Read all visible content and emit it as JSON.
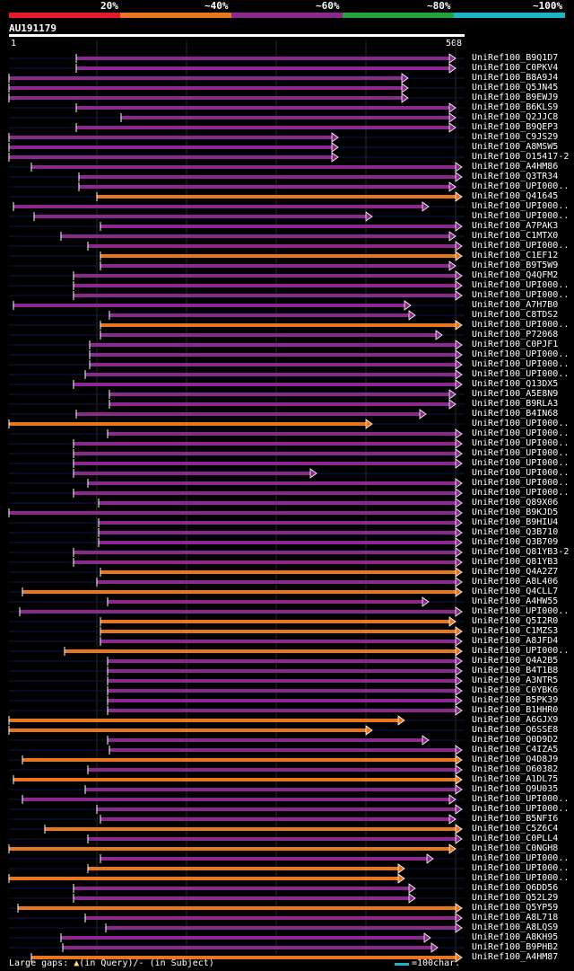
{
  "legend": {
    "labels": [
      "20%",
      "~40%",
      "~60%",
      "~80%",
      "~100%"
    ],
    "colors": [
      "#e8192c",
      "#e8761e",
      "#8b2a8e",
      "#23a33a",
      "#1fb3c8"
    ]
  },
  "query": {
    "id": "AU191179",
    "start_label": "1",
    "end_label": "508"
  },
  "footer": {
    "gaps_prefix": "Large gaps: ",
    "gap_query_symbol": "▲",
    "gaps_mid": "(in Query)/",
    "gap_subject_symbol": "-",
    "gaps_suffix": " (in Subject)",
    "scale_text": "=100char."
  },
  "chart_data": {
    "type": "alignment",
    "query_length": 508,
    "hits": [
      {
        "id": "UniRef100_B9Q1D7",
        "s": 75,
        "e": 498,
        "c": "p"
      },
      {
        "id": "UniRef100_C0PKV4",
        "s": 75,
        "e": 498,
        "c": "p"
      },
      {
        "id": "UniRef100_B8A9J4",
        "s": 0,
        "e": 445,
        "c": "p"
      },
      {
        "id": "UniRef100_Q5JN45",
        "s": 0,
        "e": 445,
        "c": "p"
      },
      {
        "id": "UniRef100_B9EWJ9",
        "s": 0,
        "e": 445,
        "c": "p"
      },
      {
        "id": "UniRef100_B6KLS9",
        "s": 75,
        "e": 498,
        "c": "p"
      },
      {
        "id": "UniRef100_Q2JJC8",
        "s": 125,
        "e": 498,
        "c": "p"
      },
      {
        "id": "UniRef100_B9QEP3",
        "s": 75,
        "e": 498,
        "c": "p"
      },
      {
        "id": "UniRef100_C9JS29",
        "s": 0,
        "e": 367,
        "c": "p"
      },
      {
        "id": "UniRef100_A8MSW5",
        "s": 0,
        "e": 367,
        "c": "p"
      },
      {
        "id": "UniRef100_O15417-2",
        "s": 0,
        "e": 367,
        "c": "p"
      },
      {
        "id": "UniRef100_A4HM86",
        "s": 25,
        "e": 505,
        "c": "p"
      },
      {
        "id": "UniRef100_Q3TR34",
        "s": 78,
        "e": 505,
        "c": "p"
      },
      {
        "id": "UniRef100_UPI000..",
        "s": 78,
        "e": 498,
        "c": "p"
      },
      {
        "id": "UniRef100_Q41645",
        "s": 98,
        "e": 505,
        "c": "o"
      },
      {
        "id": "UniRef100_UPI000..",
        "s": 5,
        "e": 468,
        "c": "p"
      },
      {
        "id": "UniRef100_UPI000..",
        "s": 28,
        "e": 405,
        "c": "p"
      },
      {
        "id": "UniRef100_A7PAK3",
        "s": 102,
        "e": 505,
        "c": "p"
      },
      {
        "id": "UniRef100_C1MTX0",
        "s": 58,
        "e": 498,
        "c": "p"
      },
      {
        "id": "UniRef100_UPI000..",
        "s": 88,
        "e": 505,
        "c": "p"
      },
      {
        "id": "UniRef100_C1EF12",
        "s": 102,
        "e": 505,
        "c": "o"
      },
      {
        "id": "UniRef100_B9T5W9",
        "s": 102,
        "e": 498,
        "c": "p"
      },
      {
        "id": "UniRef100_Q4QFM2",
        "s": 72,
        "e": 505,
        "c": "p"
      },
      {
        "id": "UniRef100_UPI000..",
        "s": 72,
        "e": 505,
        "c": "p"
      },
      {
        "id": "UniRef100_UPI000..",
        "s": 72,
        "e": 505,
        "c": "p"
      },
      {
        "id": "UniRef100_A7H7B0",
        "s": 5,
        "e": 448,
        "c": "p"
      },
      {
        "id": "UniRef100_C8TDS2",
        "s": 112,
        "e": 453,
        "c": "p"
      },
      {
        "id": "UniRef100_UPI000..",
        "s": 102,
        "e": 505,
        "c": "o"
      },
      {
        "id": "UniRef100_P72068",
        "s": 102,
        "e": 483,
        "c": "p"
      },
      {
        "id": "UniRef100_C0PJF1",
        "s": 90,
        "e": 505,
        "c": "p"
      },
      {
        "id": "UniRef100_UPI000..",
        "s": 90,
        "e": 505,
        "c": "p"
      },
      {
        "id": "UniRef100_UPI000..",
        "s": 90,
        "e": 505,
        "c": "p"
      },
      {
        "id": "UniRef100_UPI000..",
        "s": 85,
        "e": 505,
        "c": "p"
      },
      {
        "id": "UniRef100_Q13DX5",
        "s": 72,
        "e": 505,
        "c": "p"
      },
      {
        "id": "UniRef100_A5E8N9",
        "s": 112,
        "e": 498,
        "c": "p"
      },
      {
        "id": "UniRef100_B9RLA3",
        "s": 112,
        "e": 498,
        "c": "p"
      },
      {
        "id": "UniRef100_B4IN68",
        "s": 75,
        "e": 465,
        "c": "p"
      },
      {
        "id": "UniRef100_UPI000..",
        "s": 0,
        "e": 405,
        "c": "o"
      },
      {
        "id": "UniRef100_UPI000..",
        "s": 110,
        "e": 505,
        "c": "p"
      },
      {
        "id": "UniRef100_UPI000..",
        "s": 72,
        "e": 505,
        "c": "p"
      },
      {
        "id": "UniRef100_UPI000..",
        "s": 72,
        "e": 505,
        "c": "p"
      },
      {
        "id": "UniRef100_UPI000..",
        "s": 72,
        "e": 505,
        "c": "p"
      },
      {
        "id": "UniRef100_UPI000..",
        "s": 72,
        "e": 343,
        "c": "p"
      },
      {
        "id": "UniRef100_UPI000..",
        "s": 88,
        "e": 505,
        "c": "p"
      },
      {
        "id": "UniRef100_UPI000..",
        "s": 72,
        "e": 505,
        "c": "p"
      },
      {
        "id": "UniRef100_Q89X06",
        "s": 100,
        "e": 505,
        "c": "p"
      },
      {
        "id": "UniRef100_B9KJD5",
        "s": 0,
        "e": 505,
        "c": "p"
      },
      {
        "id": "UniRef100_B9HIU4",
        "s": 100,
        "e": 505,
        "c": "p"
      },
      {
        "id": "UniRef100_Q3B710",
        "s": 100,
        "e": 505,
        "c": "p"
      },
      {
        "id": "UniRef100_Q3B709",
        "s": 100,
        "e": 505,
        "c": "p"
      },
      {
        "id": "UniRef100_Q81YB3-2",
        "s": 72,
        "e": 505,
        "c": "p"
      },
      {
        "id": "UniRef100_Q81YB3",
        "s": 72,
        "e": 505,
        "c": "p"
      },
      {
        "id": "UniRef100_Q4A2Z7",
        "s": 102,
        "e": 505,
        "c": "o"
      },
      {
        "id": "UniRef100_A8L406",
        "s": 98,
        "e": 505,
        "c": "p"
      },
      {
        "id": "UniRef100_Q4CLL7",
        "s": 15,
        "e": 505,
        "c": "o"
      },
      {
        "id": "UniRef100_A4HW55",
        "s": 110,
        "e": 468,
        "c": "p"
      },
      {
        "id": "UniRef100_UPI000..",
        "s": 12,
        "e": 505,
        "c": "p"
      },
      {
        "id": "UniRef100_Q5I2R0",
        "s": 102,
        "e": 498,
        "c": "o"
      },
      {
        "id": "UniRef100_C1MZS3",
        "s": 102,
        "e": 505,
        "c": "o"
      },
      {
        "id": "UniRef100_A8JFD4",
        "s": 102,
        "e": 505,
        "c": "p"
      },
      {
        "id": "UniRef100_UPI000..",
        "s": 62,
        "e": 505,
        "c": "o"
      },
      {
        "id": "UniRef100_Q4A2B5",
        "s": 110,
        "e": 505,
        "c": "p"
      },
      {
        "id": "UniRef100_B4T1B8",
        "s": 110,
        "e": 505,
        "c": "p"
      },
      {
        "id": "UniRef100_A3NTR5",
        "s": 110,
        "e": 505,
        "c": "p"
      },
      {
        "id": "UniRef100_C0YBK6",
        "s": 110,
        "e": 505,
        "c": "p"
      },
      {
        "id": "UniRef100_B5PK39",
        "s": 110,
        "e": 505,
        "c": "p"
      },
      {
        "id": "UniRef100_B1HHR0",
        "s": 110,
        "e": 505,
        "c": "p"
      },
      {
        "id": "UniRef100_A6GJX9",
        "s": 0,
        "e": 441,
        "c": "o"
      },
      {
        "id": "UniRef100_Q6SSE8",
        "s": 0,
        "e": 405,
        "c": "o"
      },
      {
        "id": "UniRef100_Q0D9D2",
        "s": 110,
        "e": 468,
        "c": "p"
      },
      {
        "id": "UniRef100_C4IZA5",
        "s": 112,
        "e": 505,
        "c": "p"
      },
      {
        "id": "UniRef100_Q4D8J9",
        "s": 15,
        "e": 505,
        "c": "o"
      },
      {
        "id": "UniRef100_O60382",
        "s": 88,
        "e": 505,
        "c": "p"
      },
      {
        "id": "UniRef100_A1DL75",
        "s": 5,
        "e": 505,
        "c": "o"
      },
      {
        "id": "UniRef100_Q9U035",
        "s": 85,
        "e": 505,
        "c": "p"
      },
      {
        "id": "UniRef100_UPI000..",
        "s": 15,
        "e": 498,
        "c": "p"
      },
      {
        "id": "UniRef100_UPI000..",
        "s": 98,
        "e": 505,
        "c": "p"
      },
      {
        "id": "UniRef100_B5NFI6",
        "s": 102,
        "e": 498,
        "c": "p"
      },
      {
        "id": "UniRef100_C5Z6C4",
        "s": 40,
        "e": 505,
        "c": "o"
      },
      {
        "id": "UniRef100_C0PLL4",
        "s": 88,
        "e": 505,
        "c": "p"
      },
      {
        "id": "UniRef100_C0NGH8",
        "s": 0,
        "e": 498,
        "c": "o"
      },
      {
        "id": "UniRef100_UPI000..",
        "s": 102,
        "e": 473,
        "c": "p"
      },
      {
        "id": "UniRef100_UPI000..",
        "s": 88,
        "e": 441,
        "c": "o"
      },
      {
        "id": "UniRef100_UPI000..",
        "s": 0,
        "e": 441,
        "c": "o"
      },
      {
        "id": "UniRef100_Q6DD56",
        "s": 72,
        "e": 453,
        "c": "p"
      },
      {
        "id": "UniRef100_Q52L29",
        "s": 72,
        "e": 453,
        "c": "p"
      },
      {
        "id": "UniRef100_Q5YP59",
        "s": 10,
        "e": 505,
        "c": "o"
      },
      {
        "id": "UniRef100_A8L718",
        "s": 85,
        "e": 505,
        "c": "p"
      },
      {
        "id": "UniRef100_A8LQS9",
        "s": 108,
        "e": 505,
        "c": "p"
      },
      {
        "id": "UniRef100_A8KH95",
        "s": 58,
        "e": 470,
        "c": "p"
      },
      {
        "id": "UniRef100_B9PHB2",
        "s": 60,
        "e": 478,
        "c": "p"
      },
      {
        "id": "UniRef100_A4HM87",
        "s": 25,
        "e": 505,
        "c": "o"
      }
    ]
  }
}
